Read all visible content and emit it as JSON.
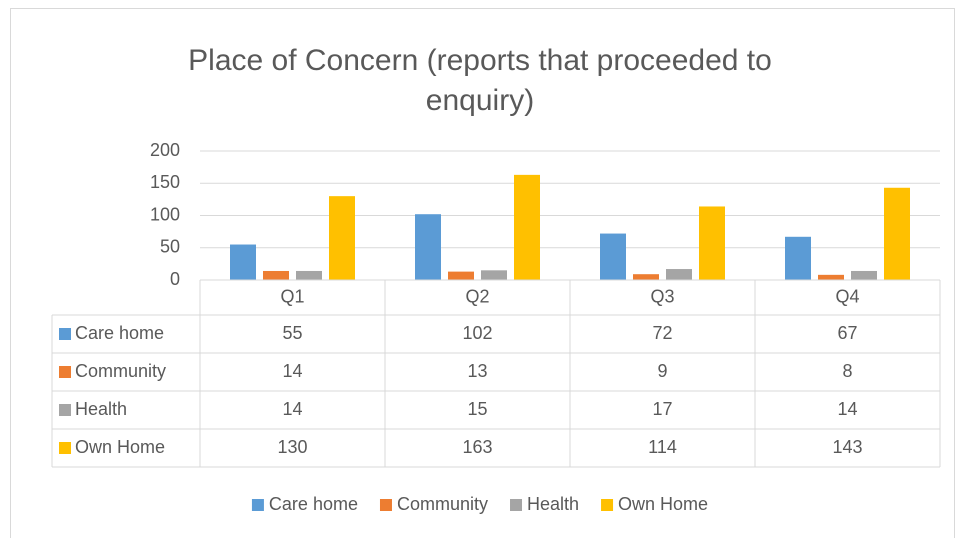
{
  "chart_data": {
    "type": "bar",
    "title": "Place of Concern (reports that proceeded to enquiry)",
    "title_lines": [
      "Place of Concern (reports that proceeded to",
      "enquiry)"
    ],
    "categories": [
      "Q1",
      "Q2",
      "Q3",
      "Q4"
    ],
    "series": [
      {
        "name": "Care home",
        "color": "#5b9bd5",
        "values": [
          55,
          102,
          72,
          67
        ]
      },
      {
        "name": "Community",
        "color": "#ed7d31",
        "values": [
          14,
          13,
          9,
          8
        ]
      },
      {
        "name": "Health",
        "color": "#a5a5a5",
        "values": [
          14,
          15,
          17,
          14
        ]
      },
      {
        "name": "Own Home",
        "color": "#ffc000",
        "values": [
          130,
          163,
          114,
          143
        ]
      }
    ],
    "ylim": [
      0,
      200
    ],
    "yticks": [
      0,
      50,
      100,
      150,
      200
    ],
    "grid": true,
    "legend": "bottom",
    "data_table": true
  }
}
